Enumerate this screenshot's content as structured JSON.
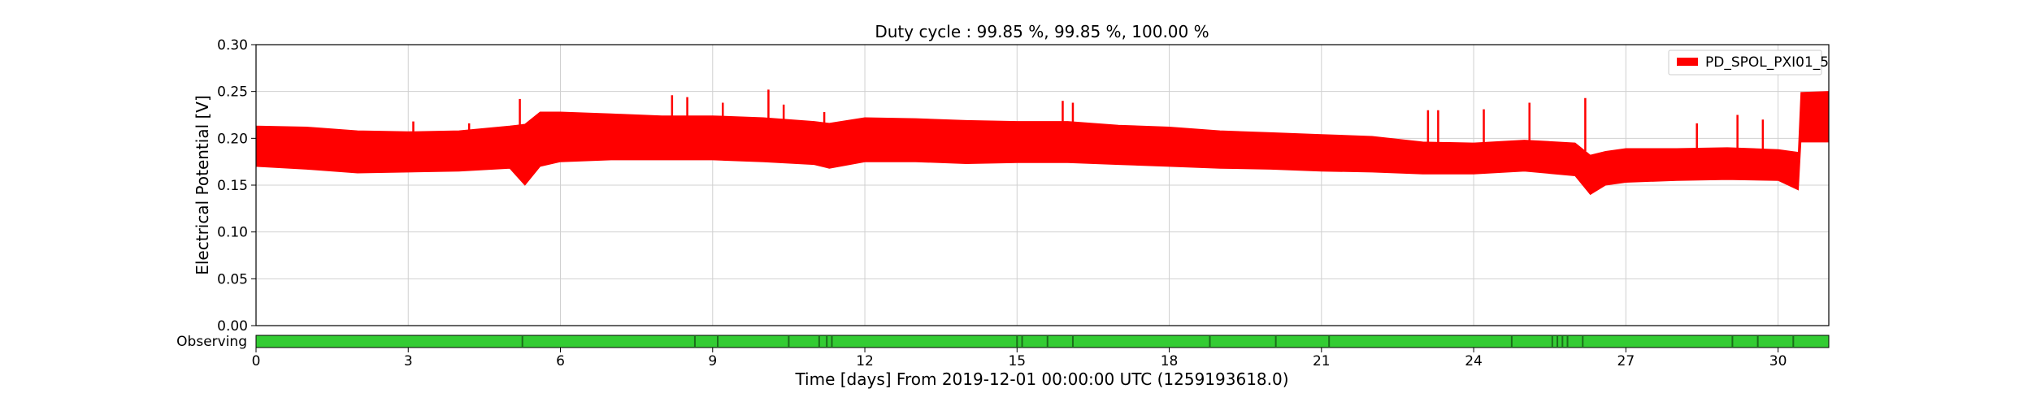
{
  "chart_data": {
    "type": "area",
    "title": "Duty cycle : 99.85 %, 99.85 %, 100.00 %",
    "xlabel": "Time [days] From 2019-12-01 00:00:00 UTC (1259193618.0)",
    "ylabel": "Electrical Potential [V]",
    "xlim": [
      0,
      31
    ],
    "ylim": [
      0,
      0.3
    ],
    "x_ticks": [
      0,
      3,
      6,
      9,
      12,
      15,
      18,
      21,
      24,
      27,
      30
    ],
    "x_tick_labels": [
      "0",
      "3",
      "6",
      "9",
      "12",
      "15",
      "18",
      "21",
      "24",
      "27",
      "30"
    ],
    "y_ticks": [
      0,
      0.05,
      0.1,
      0.15,
      0.2,
      0.25,
      0.3
    ],
    "y_tick_labels": [
      "0.00",
      "0.05",
      "0.10",
      "0.15",
      "0.20",
      "0.25",
      "0.30"
    ],
    "grid": true,
    "legend_position": "top-right",
    "series": [
      {
        "name": "PD_SPOL_PXI01_5",
        "color": "#ff0000",
        "x": [
          0,
          1,
          2,
          3,
          4,
          5,
          5.3,
          5.6,
          6,
          7,
          8,
          9,
          10,
          11,
          11.3,
          12,
          13,
          14,
          15,
          16,
          17,
          18,
          19,
          20,
          21,
          22,
          23,
          24,
          25,
          26,
          26.3,
          26.6,
          27,
          28,
          29,
          30,
          30.4,
          30.45,
          31
        ],
        "upper": [
          0.213,
          0.212,
          0.208,
          0.207,
          0.208,
          0.213,
          0.215,
          0.228,
          0.228,
          0.226,
          0.224,
          0.224,
          0.222,
          0.218,
          0.216,
          0.222,
          0.221,
          0.219,
          0.218,
          0.218,
          0.214,
          0.212,
          0.208,
          0.206,
          0.204,
          0.202,
          0.196,
          0.195,
          0.198,
          0.195,
          0.182,
          0.186,
          0.189,
          0.189,
          0.19,
          0.188,
          0.185,
          0.249,
          0.25
        ],
        "lower": [
          0.17,
          0.167,
          0.163,
          0.164,
          0.165,
          0.168,
          0.15,
          0.17,
          0.175,
          0.177,
          0.177,
          0.177,
          0.175,
          0.172,
          0.168,
          0.175,
          0.175,
          0.173,
          0.174,
          0.174,
          0.172,
          0.17,
          0.168,
          0.167,
          0.165,
          0.164,
          0.162,
          0.162,
          0.165,
          0.16,
          0.14,
          0.15,
          0.153,
          0.155,
          0.156,
          0.155,
          0.145,
          0.196,
          0.196
        ],
        "spikes": [
          {
            "x": 1.0,
            "y": 0.203
          },
          {
            "x": 3.1,
            "y": 0.218
          },
          {
            "x": 4.2,
            "y": 0.216
          },
          {
            "x": 5.2,
            "y": 0.242
          },
          {
            "x": 8.2,
            "y": 0.246
          },
          {
            "x": 8.5,
            "y": 0.244
          },
          {
            "x": 9.2,
            "y": 0.238
          },
          {
            "x": 10.1,
            "y": 0.252
          },
          {
            "x": 10.4,
            "y": 0.236
          },
          {
            "x": 11.2,
            "y": 0.228
          },
          {
            "x": 15.9,
            "y": 0.24
          },
          {
            "x": 16.1,
            "y": 0.238
          },
          {
            "x": 23.1,
            "y": 0.23
          },
          {
            "x": 23.3,
            "y": 0.23
          },
          {
            "x": 24.2,
            "y": 0.231
          },
          {
            "x": 25.1,
            "y": 0.238
          },
          {
            "x": 26.2,
            "y": 0.243
          },
          {
            "x": 28.4,
            "y": 0.216
          },
          {
            "x": 29.2,
            "y": 0.225
          },
          {
            "x": 29.7,
            "y": 0.22
          }
        ]
      }
    ],
    "state_bar": {
      "label": "Observing",
      "color": "#33cc33",
      "gap_color": "#1a6e1a",
      "gaps": [
        5.25,
        8.65,
        9.1,
        10.5,
        11.1,
        11.25,
        11.35,
        15.0,
        15.1,
        15.6,
        16.1,
        18.8,
        20.1,
        21.15,
        24.75,
        25.55,
        25.65,
        25.75,
        25.85,
        26.15,
        29.1,
        29.6,
        30.3
      ]
    }
  }
}
